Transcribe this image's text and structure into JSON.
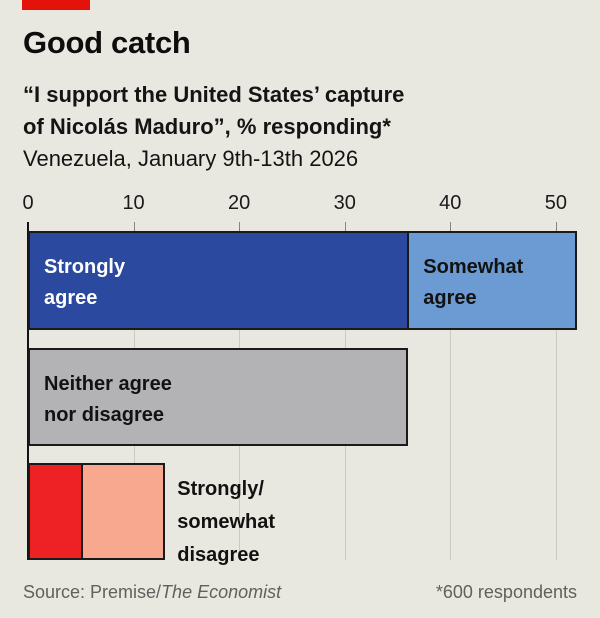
{
  "brand": {
    "tab_color": "#e3120b"
  },
  "header": {
    "title": "Good catch",
    "subtitle_line1": "“I support the United States’ capture",
    "subtitle_line2": "of Nicolás Maduro”, % responding*",
    "dateline": "Venezuela, January 9th-13th 2026"
  },
  "chart_data": {
    "type": "bar",
    "orientation": "horizontal",
    "title": "Good catch",
    "subtitle": "“I support the United States’ capture of Nicolás Maduro”, % responding*",
    "geography_period": "Venezuela, January 9th-13th 2026",
    "unit": "% of respondents",
    "axis": {
      "ticks": [
        0,
        10,
        20,
        30,
        40,
        50
      ],
      "max": 52,
      "gridlines": true,
      "position": "top"
    },
    "rows": [
      {
        "name": "agree",
        "segments": [
          {
            "label": "Strongly\nagree",
            "value": 36,
            "color": "#2b499e",
            "label_color": "#ffffff"
          },
          {
            "label": "Somewhat\nagree",
            "value": 16,
            "color": "#6b9bd2",
            "label_color": "#121212"
          }
        ]
      },
      {
        "name": "neither",
        "segments": [
          {
            "label": "Neither agree\nnor disagree",
            "value": 36,
            "color": "#b3b3b5",
            "label_color": "#121212"
          }
        ]
      },
      {
        "name": "disagree",
        "outside_label": "Strongly/\nsomewhat\ndisagree",
        "segments": [
          {
            "label": "Strongly disagree",
            "value": 5,
            "color": "#ee2124",
            "label_color": ""
          },
          {
            "label": "Somewhat disagree",
            "value": 8,
            "color": "#f8a88e",
            "label_color": ""
          }
        ]
      }
    ]
  },
  "footer": {
    "source_prefix": "Source: Premise/",
    "source_italic": "The Economist",
    "note": "*600 respondents"
  }
}
